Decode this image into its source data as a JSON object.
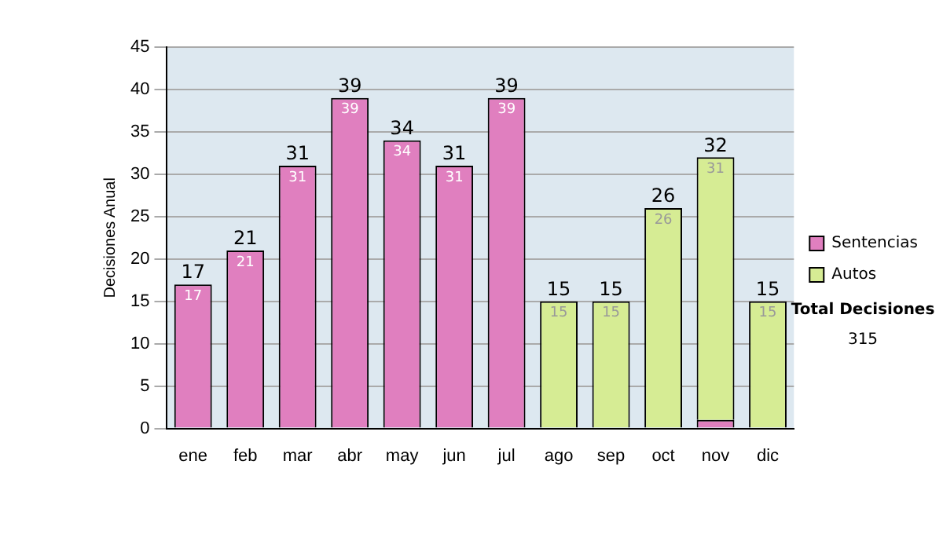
{
  "chart_data": {
    "type": "bar",
    "stacked": true,
    "ylabel": "Decisiones Anual",
    "categories": [
      "ene",
      "feb",
      "mar",
      "abr",
      "may",
      "jun",
      "jul",
      "ago",
      "sep",
      "oct",
      "nov",
      "dic"
    ],
    "series": [
      {
        "name": "Sentencias",
        "color": "#e07fbf",
        "values": [
          17,
          21,
          31,
          39,
          34,
          31,
          39,
          null,
          null,
          null,
          1,
          null
        ],
        "value_labels": [
          "17",
          "21",
          "31",
          "39",
          "34",
          "31",
          "39",
          null,
          null,
          null,
          null,
          null
        ]
      },
      {
        "name": "Autos",
        "color": "#d6ec94",
        "values": [
          null,
          null,
          null,
          null,
          null,
          null,
          null,
          15,
          15,
          26,
          31,
          15
        ],
        "value_labels": [
          null,
          null,
          null,
          null,
          null,
          null,
          null,
          "15",
          "15",
          "26",
          "31",
          "15"
        ]
      }
    ],
    "totals": [
      "17",
      "21",
      "31",
      "39",
      "34",
      "31",
      "39",
      "15",
      "15",
      "26",
      "32",
      "15"
    ],
    "ylim": [
      0,
      45
    ],
    "yticks": [
      0,
      5,
      10,
      15,
      20,
      25,
      30,
      35,
      40,
      45
    ],
    "grid": "y",
    "legend": "right",
    "annotations": [
      "Total Decisiones",
      "315"
    ]
  }
}
